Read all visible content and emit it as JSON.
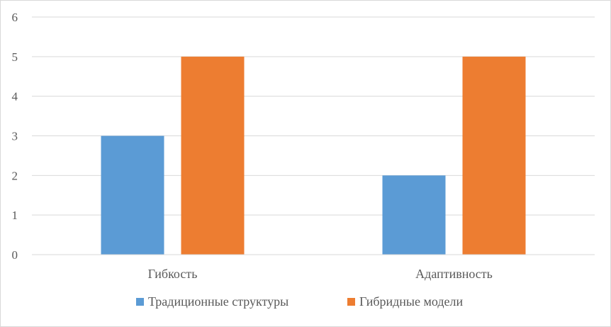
{
  "chart_data": {
    "type": "bar",
    "title": "",
    "xlabel": "",
    "ylabel": "",
    "categories": [
      "Гибкость",
      "Адаптивность"
    ],
    "series": [
      {
        "name": "Традиционные структуры",
        "values": [
          3,
          2
        ],
        "color": "#5b9bd5"
      },
      {
        "name": "Гибридные модели",
        "values": [
          5,
          5
        ],
        "color": "#ed7d31"
      }
    ],
    "ylim": [
      0,
      6
    ],
    "yticks": [
      0,
      1,
      2,
      3,
      4,
      5,
      6
    ],
    "grid": true,
    "legend": "bottom"
  }
}
